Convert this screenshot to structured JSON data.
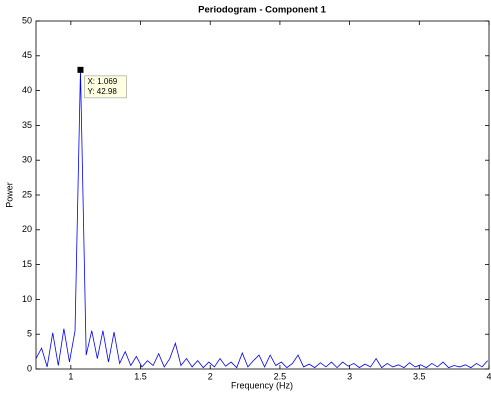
{
  "chart_data": {
    "type": "line",
    "title": "Periodogram - Component 1",
    "x_label": "Frequency (Hz)",
    "y_label": "Power",
    "x": [
      0.75,
      0.79,
      0.83,
      0.87,
      0.91,
      0.95,
      0.99,
      1.03,
      1.069,
      1.11,
      1.15,
      1.19,
      1.23,
      1.27,
      1.31,
      1.35,
      1.39,
      1.43,
      1.47,
      1.51,
      1.55,
      1.59,
      1.63,
      1.67,
      1.71,
      1.75,
      1.79,
      1.83,
      1.87,
      1.91,
      1.95,
      1.99,
      2.03,
      2.07,
      2.11,
      2.15,
      2.19,
      2.23,
      2.27,
      2.31,
      2.35,
      2.39,
      2.43,
      2.47,
      2.51,
      2.55,
      2.59,
      2.63,
      2.67,
      2.71,
      2.75,
      2.79,
      2.83,
      2.87,
      2.91,
      2.95,
      2.99,
      3.03,
      3.07,
      3.11,
      3.15,
      3.19,
      3.23,
      3.27,
      3.31,
      3.35,
      3.39,
      3.43,
      3.47,
      3.51,
      3.55,
      3.59,
      3.63,
      3.67,
      3.71,
      3.75,
      3.79,
      3.83,
      3.87,
      3.91,
      3.95,
      3.99
    ],
    "series": [
      {
        "color": "#0000ff",
        "values": [
          1.5,
          3,
          0.3,
          5.2,
          0.5,
          5.8,
          1,
          5.5,
          42.98,
          2,
          5.5,
          1.5,
          5.5,
          1,
          5.3,
          0.8,
          2.5,
          0.5,
          1.8,
          0.3,
          1.2,
          0.5,
          2.2,
          0.3,
          1.5,
          3.7,
          0.5,
          1.5,
          0.3,
          1.2,
          0.2,
          1,
          0.3,
          1.5,
          0.4,
          1,
          0.2,
          2.3,
          0.3,
          1.2,
          2,
          0.3,
          2,
          0.5,
          1,
          0.2,
          0.8,
          2,
          0.3,
          0.7,
          0.2,
          0.9,
          0.3,
          1,
          0.2,
          1,
          0.4,
          0.8,
          0.2,
          0.7,
          0.3,
          1.5,
          0.2,
          0.8,
          0.3,
          0.6,
          0.2,
          0.9,
          0.3,
          0.6,
          0.2,
          0.8,
          0.3,
          1,
          0.2,
          0.5,
          0.3,
          0.6,
          0.2,
          0.8,
          0.3,
          1.2
        ]
      }
    ],
    "xlim": [
      0.75,
      4
    ],
    "ylim": [
      0,
      50
    ],
    "xticks": [
      1,
      1.5,
      2,
      2.5,
      3,
      3.5,
      4
    ],
    "yticks": [
      0,
      5,
      10,
      15,
      20,
      25,
      30,
      35,
      40,
      45,
      50
    ],
    "grid": false,
    "datatip": {
      "point": 8,
      "lines": [
        "X: 1.069",
        "Y: 42.98"
      ]
    }
  }
}
